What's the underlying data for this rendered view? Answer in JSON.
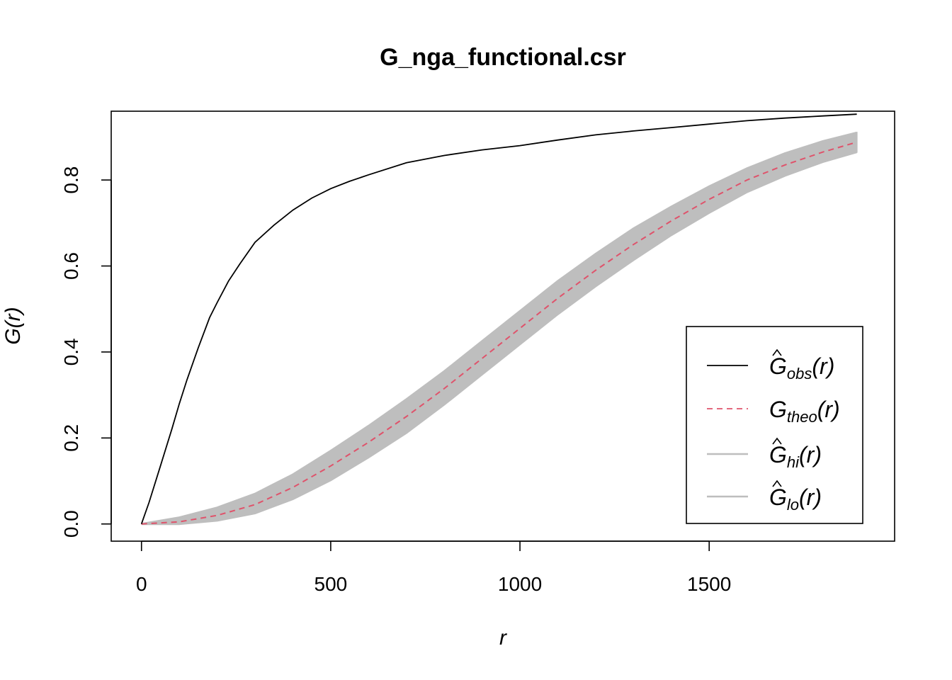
{
  "chart_data": {
    "type": "line",
    "title": "G_nga_functional.csr",
    "xlabel": "r",
    "ylabel": "G(r)",
    "xlim": [
      -80,
      1990
    ],
    "ylim": [
      -0.04,
      0.96
    ],
    "x_ticks": [
      "0",
      "500",
      "1000",
      "1500"
    ],
    "y_ticks": [
      "0.0",
      "0.2",
      "0.4",
      "0.6",
      "0.8"
    ],
    "grid": false,
    "legend_position": "bottom-right",
    "legend": [
      {
        "hat": true,
        "base": "G",
        "sub": "obs",
        "tail": "(r)",
        "color": "#000000",
        "dash": "solid"
      },
      {
        "hat": false,
        "base": "G",
        "sub": "theo",
        "tail": "(r)",
        "color": "#DF536B",
        "dash": "dashed"
      },
      {
        "hat": true,
        "base": "G",
        "sub": "hi",
        "tail": "(r)",
        "color": "#BEBEBE",
        "dash": "solid"
      },
      {
        "hat": true,
        "base": "G",
        "sub": "lo",
        "tail": "(r)",
        "color": "#BEBEBE",
        "dash": "solid"
      }
    ],
    "series": {
      "obs": {
        "x": [
          0,
          20,
          50,
          80,
          100,
          120,
          150,
          180,
          200,
          230,
          260,
          300,
          350,
          400,
          450,
          500,
          550,
          600,
          700,
          800,
          900,
          1000,
          1100,
          1200,
          1300,
          1400,
          1500,
          1600,
          1700,
          1800,
          1890
        ],
        "y": [
          0.0,
          0.05,
          0.135,
          0.22,
          0.28,
          0.335,
          0.41,
          0.48,
          0.515,
          0.565,
          0.605,
          0.655,
          0.695,
          0.73,
          0.758,
          0.78,
          0.797,
          0.812,
          0.84,
          0.857,
          0.87,
          0.88,
          0.893,
          0.905,
          0.914,
          0.922,
          0.93,
          0.938,
          0.944,
          0.949,
          0.953
        ]
      },
      "theo": {
        "x": [
          0,
          100,
          200,
          300,
          400,
          500,
          600,
          700,
          800,
          900,
          1000,
          1100,
          1200,
          1300,
          1400,
          1500,
          1600,
          1700,
          1800,
          1890
        ],
        "y": [
          0.0,
          0.005,
          0.02,
          0.045,
          0.085,
          0.135,
          0.19,
          0.25,
          0.315,
          0.385,
          0.455,
          0.525,
          0.59,
          0.65,
          0.705,
          0.755,
          0.8,
          0.835,
          0.865,
          0.888
        ]
      },
      "hi": {
        "x": [
          0,
          100,
          200,
          300,
          400,
          500,
          600,
          700,
          800,
          900,
          1000,
          1100,
          1200,
          1300,
          1400,
          1500,
          1600,
          1700,
          1800,
          1890
        ],
        "y": [
          0.0,
          0.015,
          0.038,
          0.07,
          0.115,
          0.17,
          0.228,
          0.29,
          0.355,
          0.425,
          0.495,
          0.565,
          0.628,
          0.687,
          0.738,
          0.785,
          0.827,
          0.862,
          0.89,
          0.91
        ]
      },
      "lo": {
        "x": [
          0,
          100,
          200,
          300,
          400,
          500,
          600,
          700,
          800,
          900,
          1000,
          1100,
          1200,
          1300,
          1400,
          1500,
          1600,
          1700,
          1800,
          1890
        ],
        "y": [
          0.0,
          0.0,
          0.008,
          0.025,
          0.058,
          0.102,
          0.155,
          0.212,
          0.278,
          0.348,
          0.418,
          0.488,
          0.553,
          0.614,
          0.672,
          0.724,
          0.772,
          0.81,
          0.842,
          0.865
        ]
      }
    }
  }
}
